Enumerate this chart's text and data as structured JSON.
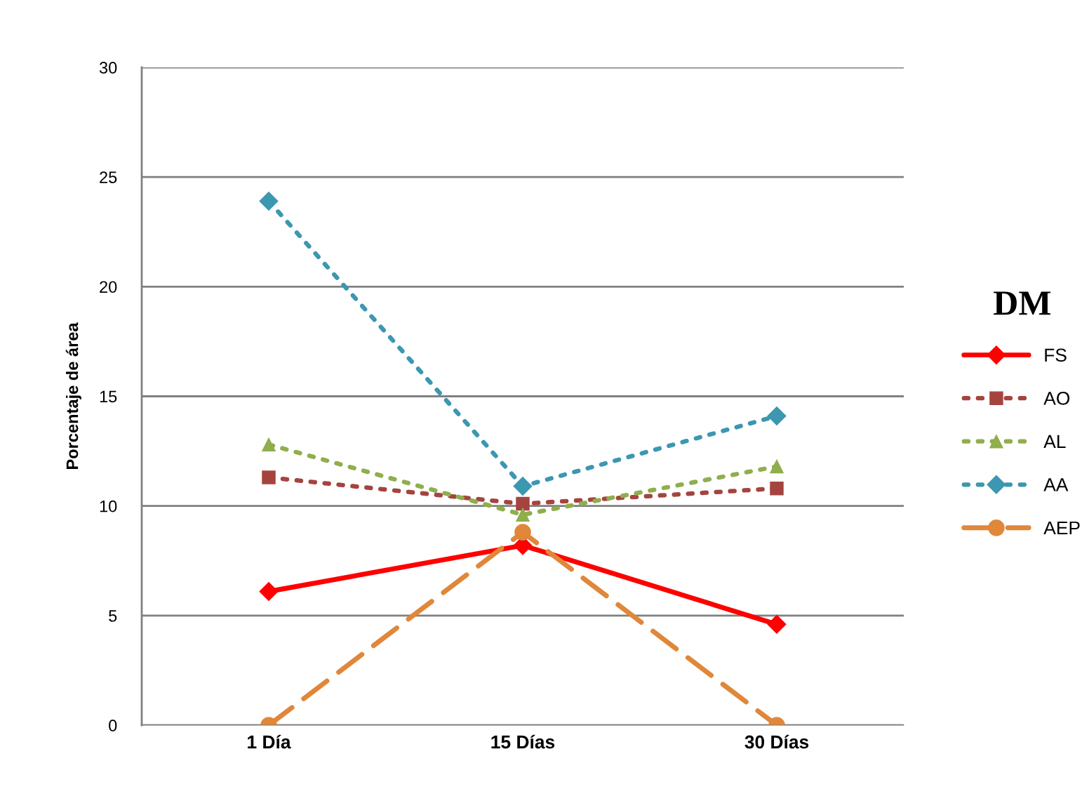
{
  "chart_data": [
    {
      "type": "line",
      "ylabel": "Porcentaje de área",
      "legend_title": "DM",
      "legend": "right",
      "grid": "y",
      "categories": [
        "1 Día",
        "15 Días",
        "30 Días"
      ],
      "ylim": [
        0,
        30
      ],
      "yticks": [
        0,
        5,
        10,
        15,
        20,
        25,
        30
      ],
      "series": [
        {
          "name": "FS",
          "color": "#ff0000",
          "values": [
            6.1,
            8.2,
            4.6
          ],
          "marker": "diamond",
          "line_style": "solid"
        },
        {
          "name": "AO",
          "color": "#a5443f",
          "values": [
            11.3,
            10.1,
            10.8
          ],
          "marker": "square",
          "line_style": "dotted"
        },
        {
          "name": "AL",
          "color": "#8fae4c",
          "values": [
            12.8,
            9.6,
            11.8
          ],
          "marker": "triangle",
          "line_style": "dotted"
        },
        {
          "name": "AA",
          "color": "#3c97b0",
          "values": [
            23.9,
            10.9,
            14.1
          ],
          "marker": "diamond",
          "line_style": "dotted"
        },
        {
          "name": "AEP",
          "color": "#e0873a",
          "values": [
            0,
            8.8,
            0
          ],
          "marker": "circle",
          "line_style": "dashed"
        }
      ]
    }
  ]
}
